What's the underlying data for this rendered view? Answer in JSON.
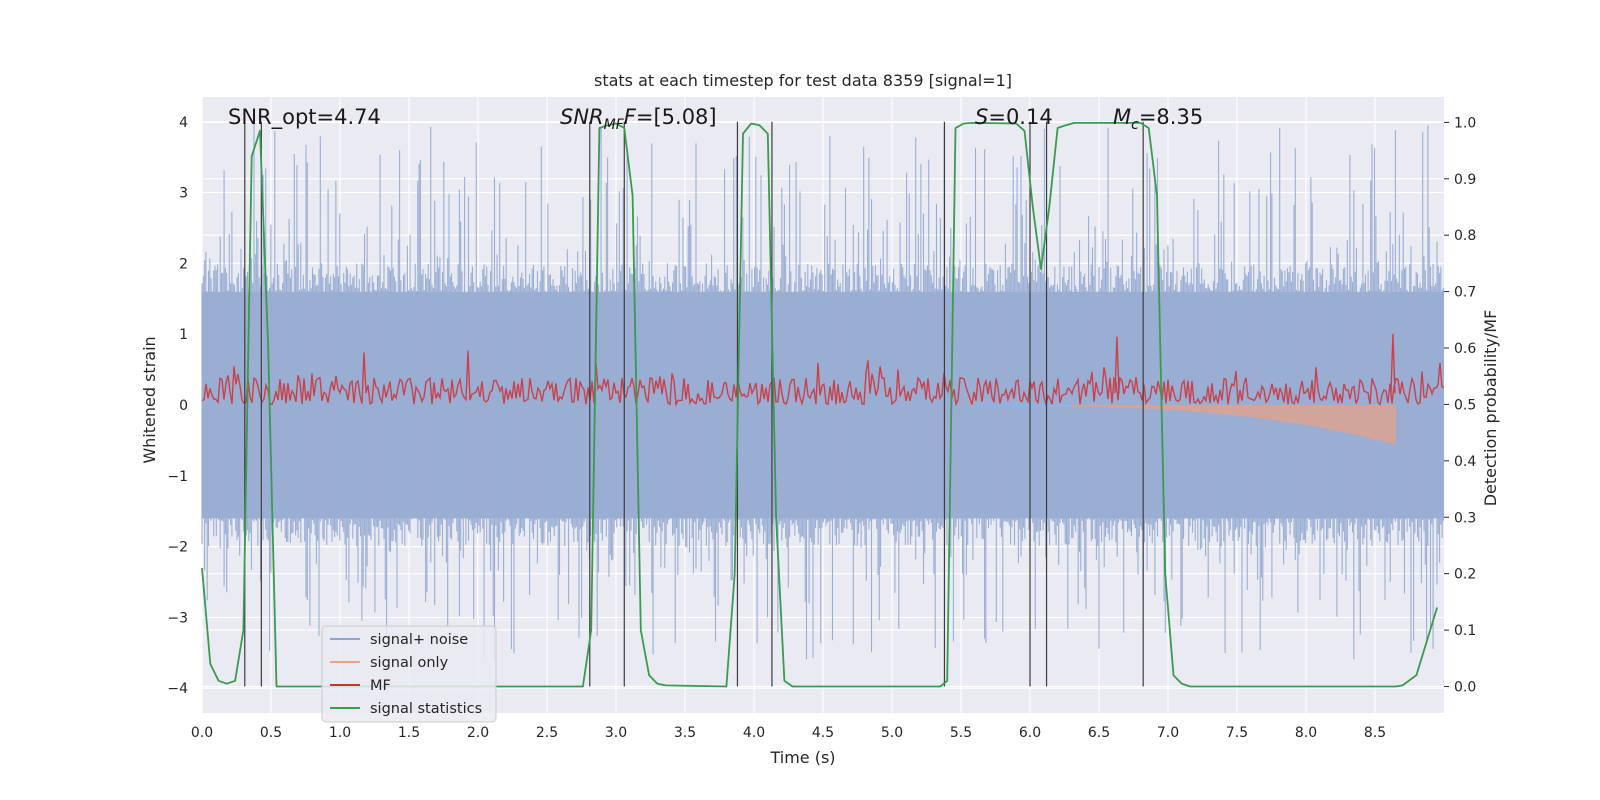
{
  "chart_data": {
    "type": "line",
    "title": "stats at each timestep for test data 8359 [signal=1]",
    "xlabel": "Time (s)",
    "ylabel": "Whitened strain",
    "y2label": "Detection probability/MF",
    "xlim": [
      0,
      9
    ],
    "ylim": [
      -4.35,
      4.35
    ],
    "y2lim": [
      -0.047,
      1.045
    ],
    "xticks": [
      "0.0",
      "0.5",
      "1.0",
      "1.5",
      "2.0",
      "2.5",
      "3.0",
      "3.5",
      "4.0",
      "4.5",
      "5.0",
      "5.5",
      "6.0",
      "6.5",
      "7.0",
      "7.5",
      "8.0",
      "8.5"
    ],
    "yticks": [
      "4",
      "3",
      "2",
      "1",
      "0",
      "−1",
      "−2",
      "−3",
      "−4"
    ],
    "y2ticks": [
      "1.0",
      "0.9",
      "0.8",
      "0.7",
      "0.6",
      "0.5",
      "0.4",
      "0.3",
      "0.2",
      "0.1",
      "0.0"
    ],
    "annotations": {
      "snr_opt": "SNR_opt=4.74",
      "snr_mf_main": "SNR",
      "snr_mf_sub": "MF",
      "snr_mf_value": "=[5.08]",
      "s_var": "S",
      "s_value": "=0.14",
      "mc_var": "M",
      "mc_sub": "c",
      "mc_value": "=8.35"
    },
    "legend": {
      "placement": "lower-left",
      "entries": [
        {
          "label": "signal+ noise",
          "color": "#8fa5d0"
        },
        {
          "label": "signal only",
          "color": "#e8a58a"
        },
        {
          "label": "MF",
          "color": "#c0392b"
        },
        {
          "label": "signal statistics",
          "color": "#3a9a4f"
        }
      ]
    },
    "series": [
      {
        "name": "signal+ noise",
        "color": "#9aaed4",
        "envelope_pos": 1.6,
        "envelope_neg": -1.6,
        "max_spike": 4.0,
        "min_spike": -3.6
      },
      {
        "name": "signal only",
        "color": "#e5a088",
        "start_time": 5.5,
        "end_time": 8.65,
        "end_value": -0.55
      },
      {
        "name": "MF",
        "color": "#c8424b",
        "baseline": 0.52,
        "peak": 0.6
      },
      {
        "name": "signal statistics",
        "color": "#3a9a4f",
        "x": [
          0.0,
          0.06,
          0.12,
          0.18,
          0.24,
          0.3,
          0.36,
          0.42,
          0.48,
          0.54,
          0.6,
          2.76,
          2.82,
          2.88,
          2.94,
          3.0,
          3.06,
          3.12,
          3.18,
          3.24,
          3.3,
          3.36,
          3.8,
          3.86,
          3.92,
          3.98,
          4.04,
          4.1,
          4.16,
          4.22,
          4.28,
          5.35,
          5.4,
          5.46,
          5.52,
          5.58,
          5.9,
          5.96,
          6.02,
          6.08,
          6.14,
          6.2,
          6.26,
          6.32,
          6.8,
          6.86,
          6.92,
          6.98,
          7.04,
          7.1,
          7.16,
          8.65,
          8.7,
          8.8,
          8.9,
          8.95
        ],
        "y": [
          0.21,
          0.04,
          0.01,
          0.005,
          0.01,
          0.1,
          0.94,
          0.985,
          0.6,
          0.0,
          0.0,
          0.0,
          0.1,
          0.99,
          0.995,
          0.998,
          0.99,
          0.87,
          0.1,
          0.02,
          0.005,
          0.002,
          0.0,
          0.2,
          0.98,
          0.998,
          0.995,
          0.98,
          0.3,
          0.01,
          0.0,
          0.0,
          0.01,
          0.99,
          0.998,
          0.999,
          0.998,
          0.985,
          0.85,
          0.74,
          0.85,
          0.99,
          0.995,
          0.999,
          0.999,
          0.99,
          0.87,
          0.2,
          0.02,
          0.005,
          0.0,
          0.0,
          0.002,
          0.02,
          0.1,
          0.14
        ]
      }
    ],
    "vlines": [
      0.31,
      0.43,
      2.81,
      3.06,
      3.88,
      4.13,
      5.38,
      6.0,
      6.12,
      6.82
    ]
  }
}
